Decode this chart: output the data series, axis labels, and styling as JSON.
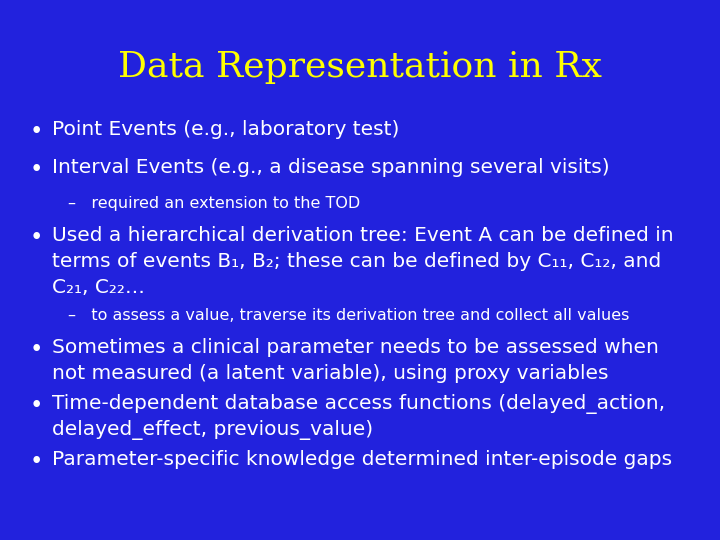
{
  "title": "Data Representation in Rx",
  "title_color": "#FFFF00",
  "title_fontsize": 26,
  "background_color": "#2222DD",
  "text_color": "#FFFFFF",
  "bullet_fontsize": 14.5,
  "sub_fontsize": 11.5,
  "items": [
    {
      "type": "bullet",
      "text": "Point Events (e.g., laboratory test)"
    },
    {
      "type": "bullet",
      "text": "Interval Events (e.g., a disease spanning several visits)"
    },
    {
      "type": "sub",
      "text": "–   required an extension to the TOD"
    },
    {
      "type": "bullet_multi",
      "lines": [
        "Used a hierarchical derivation tree: Event A can be defined in",
        "terms of events B₁, B₂; these can be defined by C₁₁, C₁₂, and",
        "C₂₁, C₂₂…"
      ]
    },
    {
      "type": "sub",
      "text": "–   to assess a value, traverse its derivation tree and collect all values"
    },
    {
      "type": "bullet_multi",
      "lines": [
        "Sometimes a clinical parameter needs to be assessed when",
        "not measured (a latent variable), using proxy variables"
      ]
    },
    {
      "type": "bullet_multi",
      "lines": [
        "Time-dependent database access functions (delayed_action,",
        "delayed_effect, previous_value)"
      ]
    },
    {
      "type": "bullet",
      "text": "Parameter-specific knowledge determined inter-episode gaps"
    }
  ]
}
